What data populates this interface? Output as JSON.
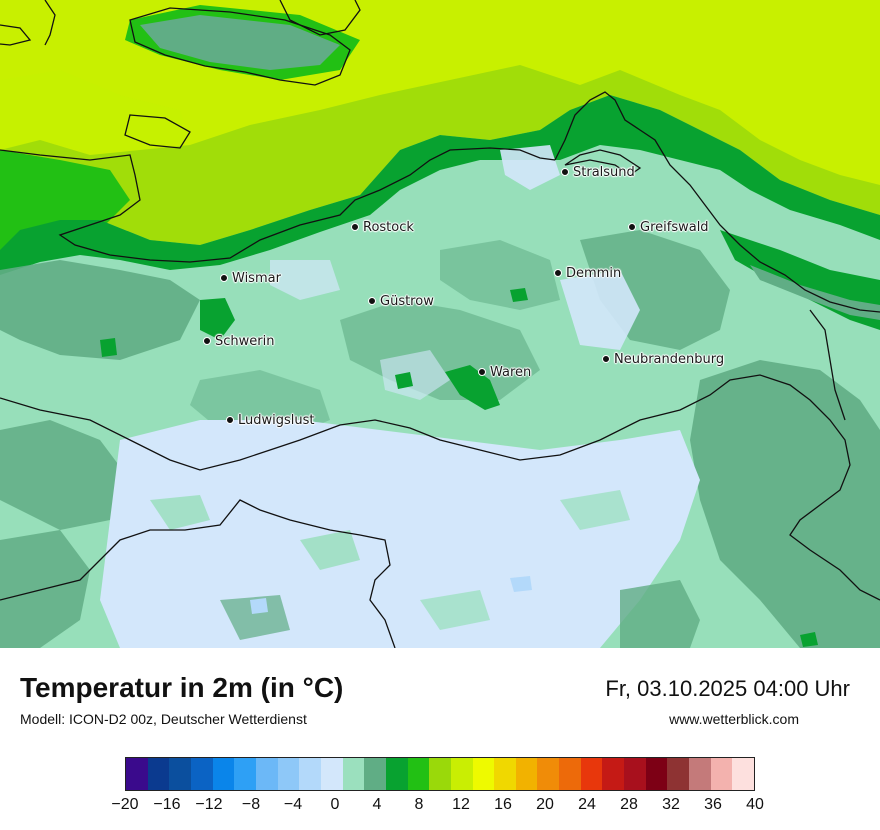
{
  "title": "Temperatur in 2m (in °C)",
  "model_info": "Modell: ICON-D2 00z, Deutscher Wetterdienst",
  "datetime": "Fr, 03.10.2025 04:00 Uhr",
  "website": "www.wetterblick.com",
  "cities": [
    {
      "name": "Stralsund"
    },
    {
      "name": "Rostock"
    },
    {
      "name": "Greifswald"
    },
    {
      "name": "Wismar"
    },
    {
      "name": "Demmin"
    },
    {
      "name": "Güstrow"
    },
    {
      "name": "Schwerin"
    },
    {
      "name": "Neubrandenburg"
    },
    {
      "name": "Waren"
    },
    {
      "name": "Ludwigslust"
    }
  ],
  "legend": {
    "colors": [
      "#3a0a8c",
      "#0b3a8f",
      "#0b4f9e",
      "#0b63c4",
      "#0a85ea",
      "#2ea0f5",
      "#6cb8f7",
      "#8ec8f8",
      "#b3d9fa",
      "#d3e7fb",
      "#9be0be",
      "#60ad85",
      "#08a230",
      "#22c014",
      "#9ad90a",
      "#c9ee03",
      "#eefa00",
      "#f0d800",
      "#f2b200",
      "#f08c08",
      "#ed6a0a",
      "#e8370c",
      "#c51a15",
      "#a8101d",
      "#7d0015",
      "#8e3333",
      "#c47a7a",
      "#f3b2ae",
      "#fde0de"
    ],
    "tick_labels": [
      "−20",
      "−16",
      "−12",
      "−8",
      "−4",
      "0",
      "4",
      "8",
      "12",
      "16",
      "20",
      "24",
      "28",
      "32",
      "36",
      "40"
    ]
  }
}
